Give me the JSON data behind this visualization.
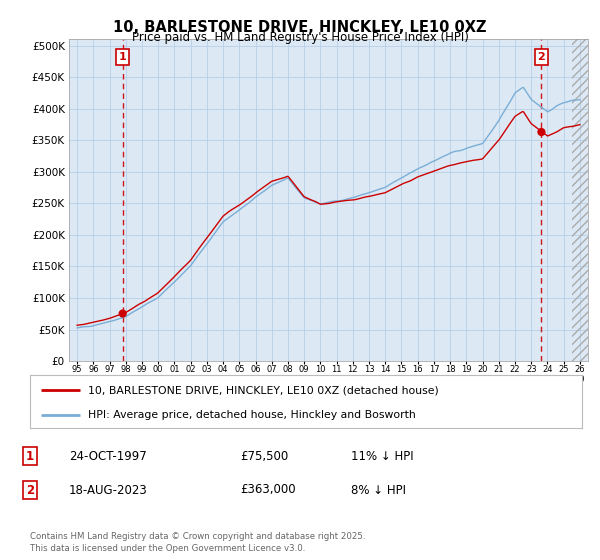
{
  "title": "10, BARLESTONE DRIVE, HINCKLEY, LE10 0XZ",
  "subtitle": "Price paid vs. HM Land Registry's House Price Index (HPI)",
  "legend_line1": "10, BARLESTONE DRIVE, HINCKLEY, LE10 0XZ (detached house)",
  "legend_line2": "HPI: Average price, detached house, Hinckley and Bosworth",
  "annotation1_label": "1",
  "annotation1_date": "24-OCT-1997",
  "annotation1_price": "£75,500",
  "annotation1_hpi": "11% ↓ HPI",
  "annotation2_label": "2",
  "annotation2_date": "18-AUG-2023",
  "annotation2_price": "£363,000",
  "annotation2_hpi": "8% ↓ HPI",
  "footnote": "Contains HM Land Registry data © Crown copyright and database right 2025.\nThis data is licensed under the Open Government Licence v3.0.",
  "xmin": 1994.5,
  "xmax": 2026.5,
  "ymin": 0,
  "ymax": 510000,
  "yticks": [
    0,
    50000,
    100000,
    150000,
    200000,
    250000,
    300000,
    350000,
    400000,
    450000,
    500000
  ],
  "red_line_color": "#cc0000",
  "blue_line_color": "#7aaed6",
  "chart_bg_color": "#dce9f5",
  "grid_color": "#b8cfe8",
  "background_color": "#ffffff",
  "annotation_box_color": "#cc0000",
  "hatch_color": "#aaaaaa",
  "point1_x": 1997.81,
  "point1_y": 75500,
  "point2_x": 2023.63,
  "point2_y": 363000
}
